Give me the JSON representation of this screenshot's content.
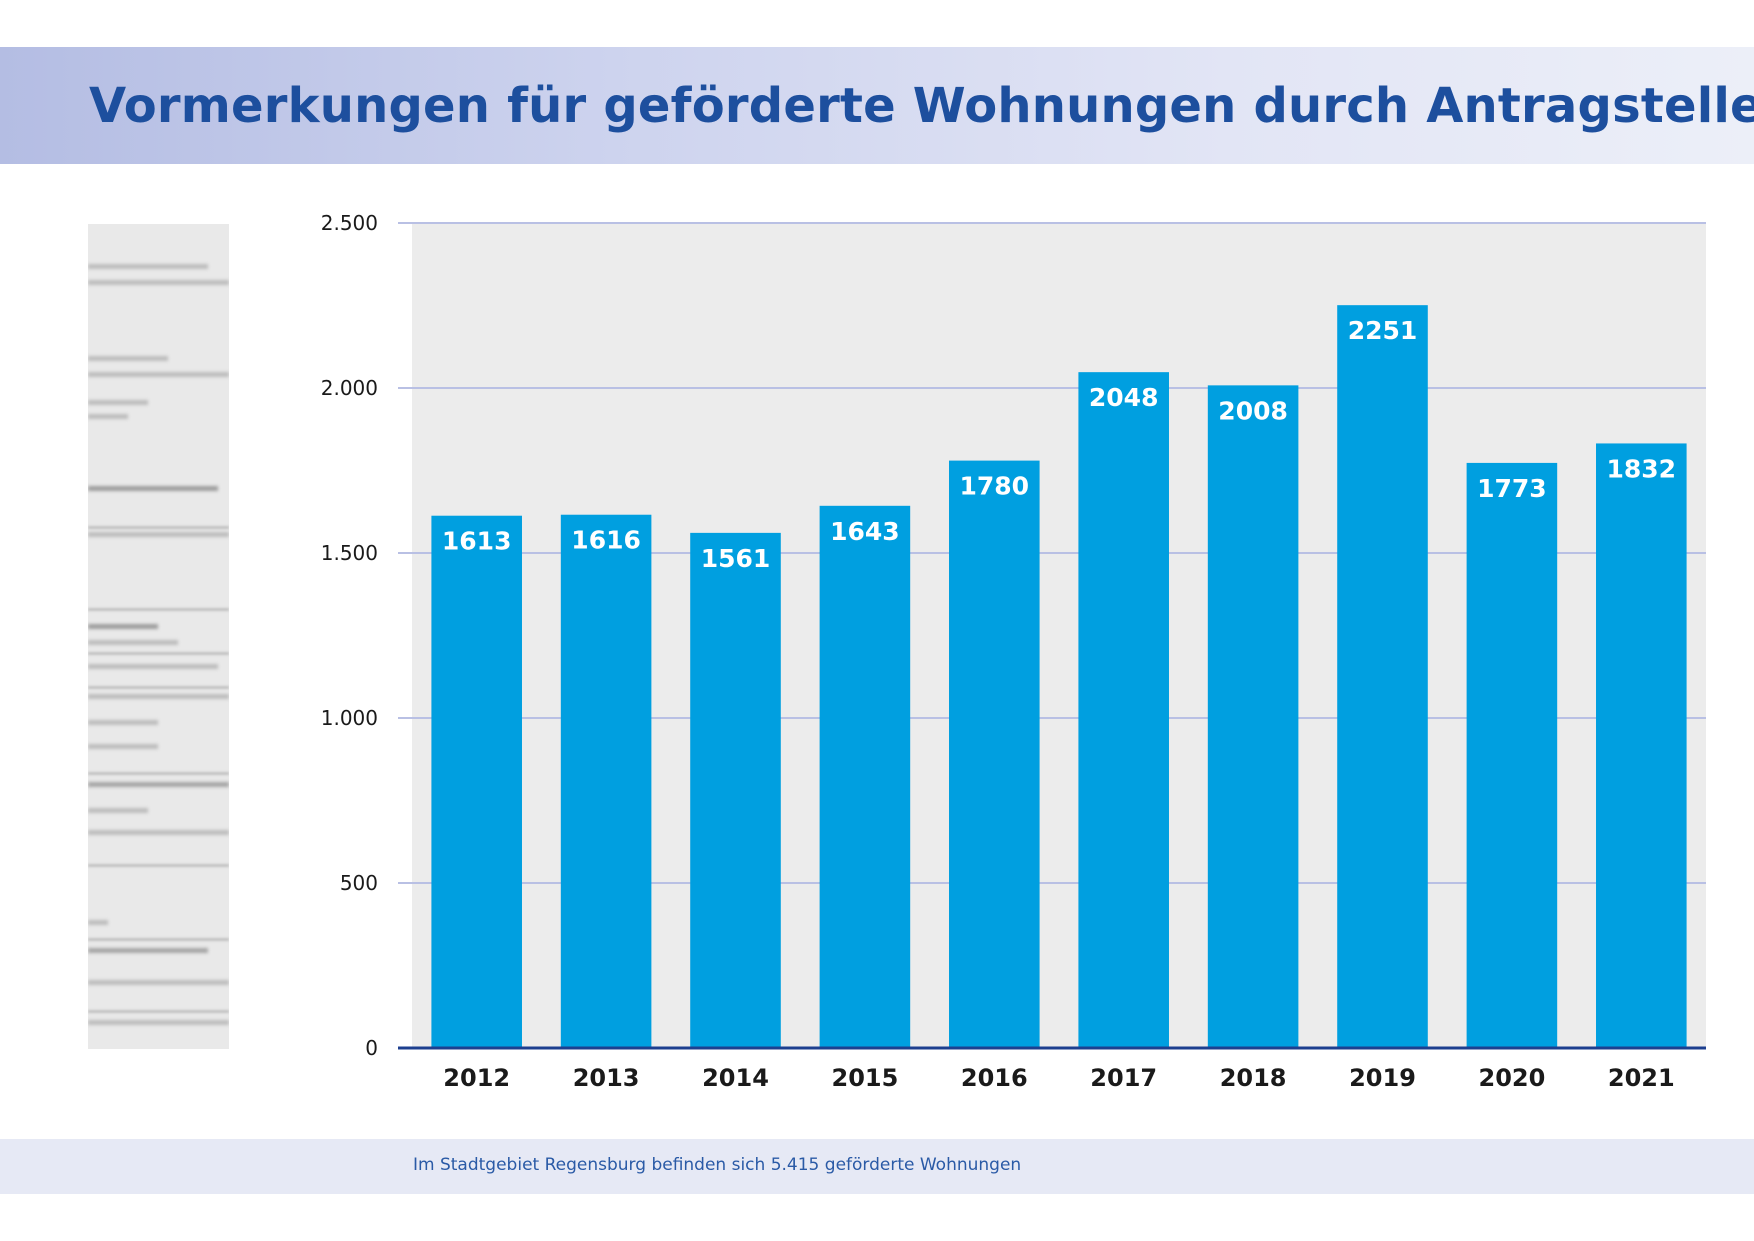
{
  "page": {
    "title": "Vormerkungen für geförderte Wohnungen durch Antragsteller",
    "footnote": "Im Stadtgebiet Regensburg befinden sich 5.415 geförderte Wohnungen"
  },
  "colors": {
    "bar": "#009fe0",
    "plot_background": "#ececec",
    "gridline": "#b9c0e4",
    "baseline": "#1d3f8f",
    "title_text": "#1d4f9e",
    "footnote_text": "#2a5aa6"
  },
  "chart_data": {
    "type": "bar",
    "title": "Vormerkungen für geförderte Wohnungen durch Antragsteller",
    "xlabel": "",
    "ylabel": "",
    "categories": [
      "2012",
      "2013",
      "2014",
      "2015",
      "2016",
      "2017",
      "2018",
      "2019",
      "2020",
      "2021"
    ],
    "values": [
      1613,
      1616,
      1561,
      1643,
      1780,
      2048,
      2008,
      2251,
      1773,
      1832
    ],
    "data_labels": [
      "1613",
      "1616",
      "1561",
      "1643",
      "1780",
      "2048",
      "2008",
      "2251",
      "1773",
      "1832"
    ],
    "ylim": [
      0,
      2500
    ],
    "yticks": [
      0,
      500,
      1000,
      1500,
      2000,
      2500
    ],
    "ytick_labels": [
      "0",
      "500",
      "1.000",
      "1.500",
      "2.000",
      "2.500"
    ],
    "grid": true,
    "legend": "none"
  }
}
